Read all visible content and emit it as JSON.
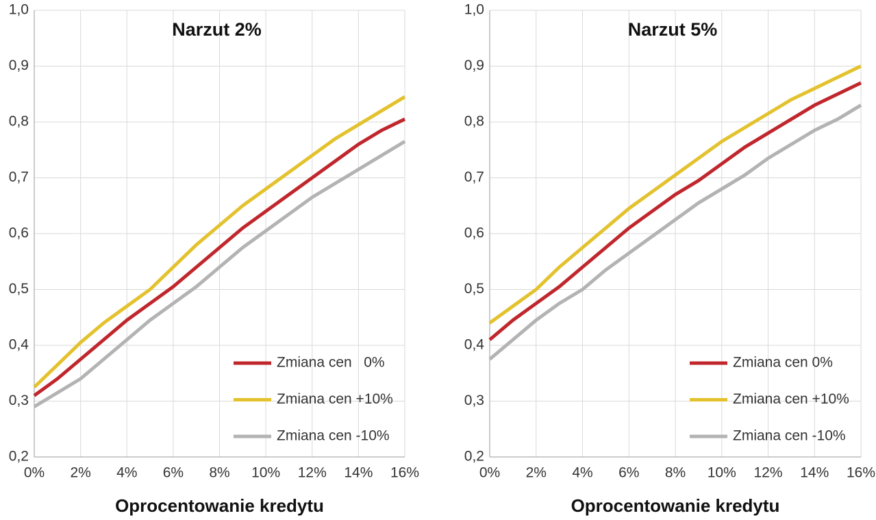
{
  "chart_data": [
    {
      "type": "line",
      "title": "Narzut 2%",
      "x_label": "Oprocentowanie kredytu",
      "x": [
        0,
        1,
        2,
        3,
        4,
        5,
        6,
        7,
        8,
        9,
        10,
        11,
        12,
        13,
        14,
        15,
        16
      ],
      "series": [
        {
          "name": "Zmiana cen   0%",
          "color": "#c0272d",
          "values": [
            0.31,
            0.34,
            0.375,
            0.41,
            0.445,
            0.475,
            0.505,
            0.54,
            0.575,
            0.61,
            0.64,
            0.67,
            0.7,
            0.73,
            0.76,
            0.785,
            0.805
          ]
        },
        {
          "name": "Zmiana cen +10%",
          "color": "#e3c22e",
          "values": [
            0.325,
            0.365,
            0.405,
            0.44,
            0.47,
            0.5,
            0.54,
            0.58,
            0.615,
            0.65,
            0.68,
            0.71,
            0.74,
            0.77,
            0.795,
            0.82,
            0.845
          ]
        },
        {
          "name": "Zmiana cen -10%",
          "color": "#b3b3b3",
          "values": [
            0.29,
            0.315,
            0.34,
            0.375,
            0.41,
            0.445,
            0.475,
            0.505,
            0.54,
            0.575,
            0.605,
            0.635,
            0.665,
            0.69,
            0.715,
            0.74,
            0.765
          ]
        }
      ],
      "xlim": [
        0,
        16
      ],
      "xticks": [
        {
          "value": 0,
          "label": "0%"
        },
        {
          "value": 2,
          "label": "2%"
        },
        {
          "value": 4,
          "label": "4%"
        },
        {
          "value": 6,
          "label": "6%"
        },
        {
          "value": 8,
          "label": "8%"
        },
        {
          "value": 10,
          "label": "10%"
        },
        {
          "value": 12,
          "label": "12%"
        },
        {
          "value": 14,
          "label": "14%"
        },
        {
          "value": 16,
          "label": "16%"
        }
      ],
      "ylim": [
        0.2,
        1.0
      ],
      "yticks": [
        {
          "value": 0.2,
          "label": "0,2"
        },
        {
          "value": 0.3,
          "label": "0,3"
        },
        {
          "value": 0.4,
          "label": "0,4"
        },
        {
          "value": 0.5,
          "label": "0,5"
        },
        {
          "value": 0.6,
          "label": "0,6"
        },
        {
          "value": 0.7,
          "label": "0,7"
        },
        {
          "value": 0.8,
          "label": "0,8"
        },
        {
          "value": 0.9,
          "label": "0,9"
        },
        {
          "value": 1.0,
          "label": "1,0"
        }
      ],
      "grid": true,
      "legend": "lower right"
    },
    {
      "type": "line",
      "title": "Narzut 5%",
      "x_label": "Oprocentowanie kredytu",
      "x": [
        0,
        1,
        2,
        3,
        4,
        5,
        6,
        7,
        8,
        9,
        10,
        11,
        12,
        13,
        14,
        15,
        16
      ],
      "series": [
        {
          "name": "Zmiana cen 0%",
          "color": "#c0272d",
          "values": [
            0.41,
            0.445,
            0.475,
            0.505,
            0.54,
            0.575,
            0.61,
            0.64,
            0.67,
            0.695,
            0.725,
            0.755,
            0.78,
            0.805,
            0.83,
            0.85,
            0.87
          ]
        },
        {
          "name": "Zmiana cen +10%",
          "color": "#e3c22e",
          "values": [
            0.44,
            0.47,
            0.5,
            0.54,
            0.575,
            0.61,
            0.645,
            0.675,
            0.705,
            0.735,
            0.765,
            0.79,
            0.815,
            0.84,
            0.86,
            0.88,
            0.9
          ]
        },
        {
          "name": "Zmiana cen -10%",
          "color": "#b3b3b3",
          "values": [
            0.375,
            0.41,
            0.445,
            0.475,
            0.5,
            0.535,
            0.565,
            0.595,
            0.625,
            0.655,
            0.68,
            0.705,
            0.735,
            0.76,
            0.785,
            0.805,
            0.83
          ]
        }
      ],
      "xlim": [
        0,
        16
      ],
      "xticks": [
        {
          "value": 0,
          "label": "0%"
        },
        {
          "value": 2,
          "label": "2%"
        },
        {
          "value": 4,
          "label": "4%"
        },
        {
          "value": 6,
          "label": "6%"
        },
        {
          "value": 8,
          "label": "8%"
        },
        {
          "value": 10,
          "label": "10%"
        },
        {
          "value": 12,
          "label": "12%"
        },
        {
          "value": 14,
          "label": "14%"
        },
        {
          "value": 16,
          "label": "16%"
        }
      ],
      "ylim": [
        0.2,
        1.0
      ],
      "yticks": [
        {
          "value": 0.2,
          "label": "0,2"
        },
        {
          "value": 0.3,
          "label": "0,3"
        },
        {
          "value": 0.4,
          "label": "0,4"
        },
        {
          "value": 0.5,
          "label": "0,5"
        },
        {
          "value": 0.6,
          "label": "0,6"
        },
        {
          "value": 0.7,
          "label": "0,7"
        },
        {
          "value": 0.8,
          "label": "0,8"
        },
        {
          "value": 0.9,
          "label": "0,9"
        },
        {
          "value": 1.0,
          "label": "1,0"
        }
      ],
      "grid": true,
      "legend": "lower right"
    }
  ]
}
